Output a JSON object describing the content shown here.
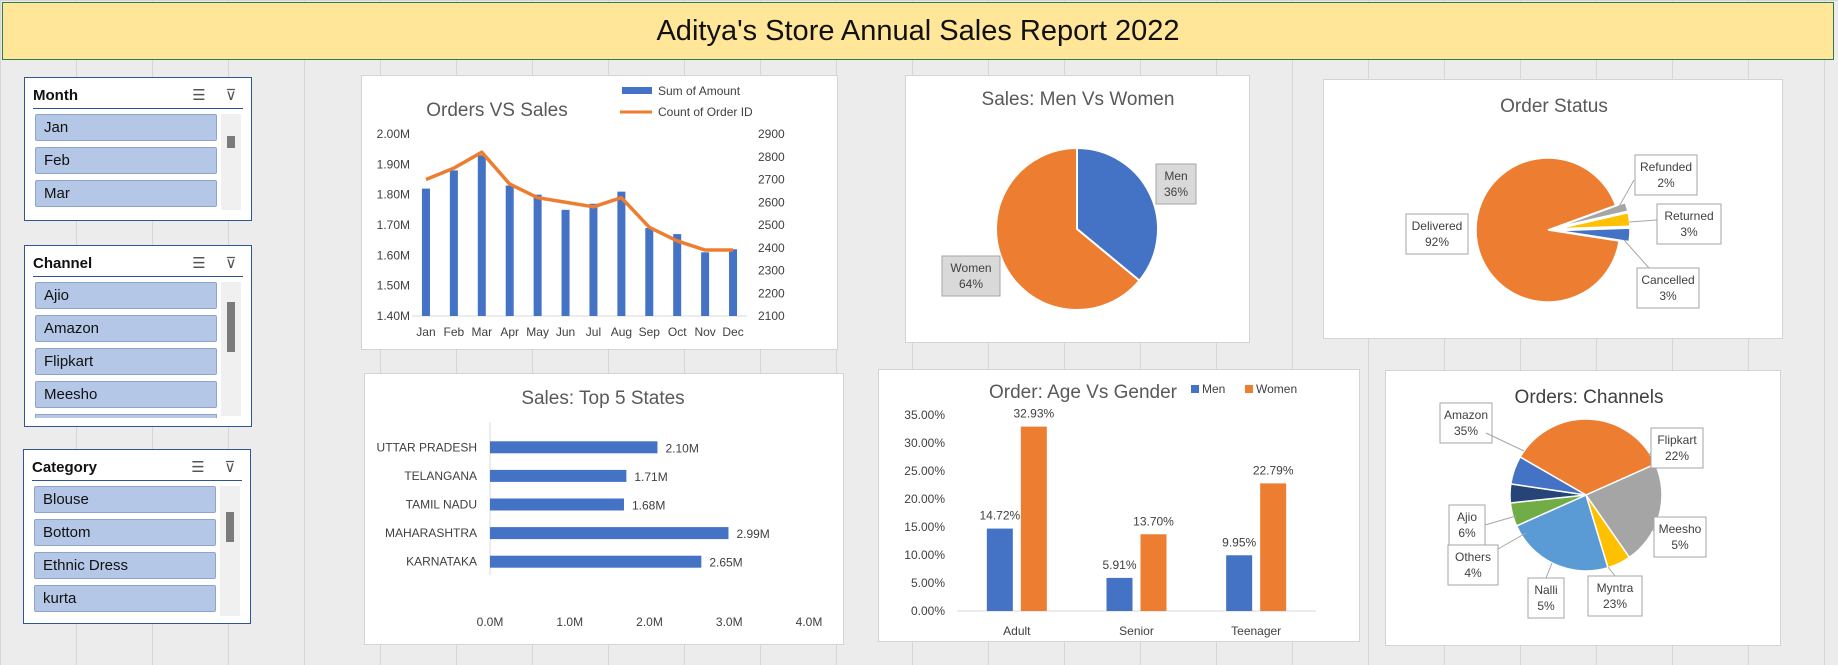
{
  "title": "Aditya's Store Annual Sales Report 2022",
  "slicers": [
    {
      "title": "Month",
      "items": [
        "Jan",
        "Feb",
        "Mar"
      ],
      "icons": [
        "multi-select-icon",
        "clear-filter-icon"
      ]
    },
    {
      "title": "Channel",
      "items": [
        "Ajio",
        "Amazon",
        "Flipkart",
        "Meesho"
      ],
      "icons": [
        "multi-select-icon",
        "clear-filter-icon"
      ]
    },
    {
      "title": "Category",
      "items": [
        "Blouse",
        "Bottom",
        "Ethnic Dress",
        "kurta"
      ],
      "icons": [
        "multi-select-icon",
        "clear-filter-icon"
      ]
    }
  ],
  "colors": {
    "blue": "#4472c4",
    "orange": "#ed7d31",
    "gray": "#a5a5a5",
    "yellow": "#ffc000",
    "lightblue": "#5b9bd5",
    "green": "#70ad47",
    "navy": "#264478"
  },
  "chart_data": [
    {
      "type": "bar",
      "title": "Orders VS Sales",
      "categories": [
        "Jan",
        "Feb",
        "Mar",
        "Apr",
        "May",
        "Jun",
        "Jul",
        "Aug",
        "Sep",
        "Oct",
        "Nov",
        "Dec"
      ],
      "series": [
        {
          "name": "Sum of Amount",
          "type": "bar",
          "axis": "left",
          "values": [
            1.82,
            1.88,
            1.93,
            1.83,
            1.8,
            1.75,
            1.77,
            1.81,
            1.69,
            1.67,
            1.61,
            1.62
          ]
        },
        {
          "name": "Count of Order ID",
          "type": "line",
          "axis": "right",
          "values": [
            2700,
            2750,
            2820,
            2680,
            2620,
            2600,
            2580,
            2620,
            2490,
            2430,
            2390,
            2390
          ]
        }
      ],
      "y_left": {
        "min": 1.4,
        "max": 2.0,
        "ticks": [
          "1.40M",
          "1.50M",
          "1.60M",
          "1.70M",
          "1.80M",
          "1.90M",
          "2.00M"
        ]
      },
      "y_right": {
        "min": 2100,
        "max": 2900,
        "ticks": [
          "2100",
          "2200",
          "2300",
          "2400",
          "2500",
          "2600",
          "2700",
          "2800",
          "2900"
        ]
      },
      "legend": "top-right"
    },
    {
      "type": "pie",
      "title": "Sales: Men Vs Women",
      "labels": [
        "Men",
        "Women"
      ],
      "values": [
        36,
        64
      ],
      "display": [
        "36%",
        "64%"
      ]
    },
    {
      "type": "pie",
      "title": "Order Status",
      "labels": [
        "Refunded",
        "Returned",
        "Cancelled",
        "Delivered"
      ],
      "values": [
        2,
        3,
        3,
        92
      ],
      "display": [
        "2%",
        "3%",
        "3%",
        "92%"
      ]
    },
    {
      "type": "bar",
      "orientation": "horizontal",
      "title": "Sales: Top 5 States",
      "categories": [
        "UTTAR PRADESH",
        "TELANGANA",
        "TAMIL NADU",
        "MAHARASHTRA",
        "KARNATAKA"
      ],
      "values": [
        2.1,
        1.71,
        1.68,
        2.99,
        2.65
      ],
      "data_labels": [
        "2.10M",
        "1.71M",
        "1.68M",
        "2.99M",
        "2.65M"
      ],
      "x_ticks": [
        "0.0M",
        "1.0M",
        "2.0M",
        "3.0M",
        "4.0M"
      ],
      "xlim": [
        0,
        4
      ]
    },
    {
      "type": "bar",
      "title": "Order: Age Vs Gender",
      "categories": [
        "Adult",
        "Senior",
        "Teenager"
      ],
      "series": [
        {
          "name": "Men",
          "values": [
            14.72,
            5.91,
            9.95
          ],
          "labels": [
            "14.72%",
            "5.91%",
            "9.95%"
          ]
        },
        {
          "name": "Women",
          "values": [
            32.93,
            13.7,
            22.79
          ],
          "labels": [
            "32.93%",
            "13.70%",
            "22.79%"
          ]
        }
      ],
      "y_ticks": [
        "0.00%",
        "5.00%",
        "10.00%",
        "15.00%",
        "20.00%",
        "25.00%",
        "30.00%",
        "35.00%"
      ],
      "ylim": [
        0,
        35
      ],
      "legend": "top-right"
    },
    {
      "type": "pie",
      "title": "Orders: Channels",
      "labels": [
        "Amazon",
        "Flipkart",
        "Meesho",
        "Myntra",
        "Nalli",
        "Others",
        "Ajio"
      ],
      "values": [
        35,
        22,
        5,
        23,
        5,
        4,
        6
      ],
      "display": [
        "35%",
        "22%",
        "5%",
        "23%",
        "5%",
        "4%",
        "6%"
      ]
    }
  ]
}
